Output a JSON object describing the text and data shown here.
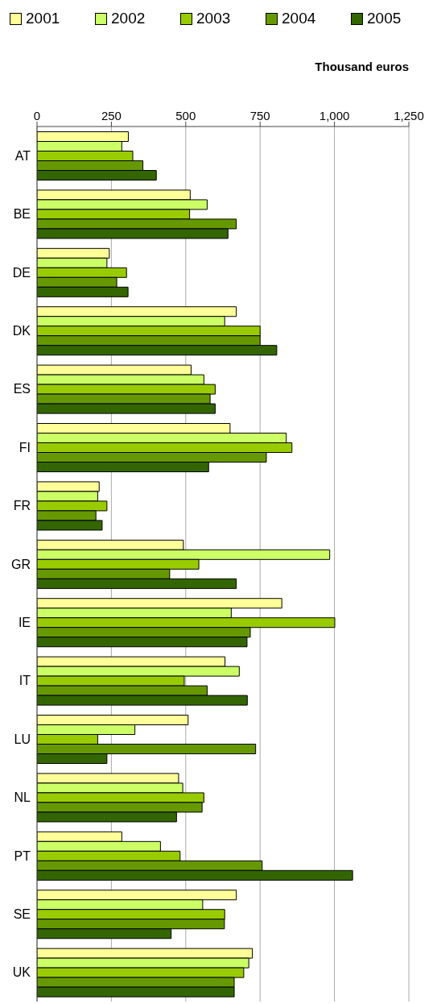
{
  "chart_data": {
    "type": "bar",
    "orientation": "horizontal",
    "xlabel": "Thousand euros",
    "categories": [
      "AT",
      "BE",
      "DE",
      "DK",
      "ES",
      "FI",
      "FR",
      "GR",
      "IE",
      "IT",
      "LU",
      "NL",
      "PT",
      "SE",
      "UK"
    ],
    "series": [
      {
        "name": "2001",
        "color": "#ffff99",
        "values": [
          307,
          515,
          243,
          670,
          518,
          649,
          209,
          492,
          823,
          632,
          508,
          476,
          285,
          670,
          724
        ]
      },
      {
        "name": "2002",
        "color": "#ccff66",
        "values": [
          285,
          572,
          235,
          631,
          561,
          838,
          204,
          984,
          653,
          680,
          329,
          490,
          415,
          557,
          712
        ]
      },
      {
        "name": "2003",
        "color": "#99cc00",
        "values": [
          322,
          513,
          301,
          750,
          599,
          857,
          235,
          544,
          1001,
          495,
          204,
          561,
          481,
          631,
          695
        ]
      },
      {
        "name": "2004",
        "color": "#669900",
        "values": [
          356,
          670,
          268,
          750,
          582,
          771,
          198,
          446,
          717,
          572,
          735,
          555,
          757,
          630,
          663
        ]
      },
      {
        "name": "2005",
        "color": "#336600",
        "values": [
          401,
          642,
          306,
          806,
          599,
          577,
          219,
          670,
          706,
          707,
          235,
          469,
          1061,
          451,
          663
        ]
      }
    ],
    "xlim": [
      0,
      1250
    ],
    "xticks": [
      0,
      250,
      500,
      750,
      {
        "value": 1000,
        "label": "1,000"
      },
      {
        "value": 1250,
        "label": "1,250"
      }
    ],
    "grid": "x",
    "legend": "top"
  }
}
